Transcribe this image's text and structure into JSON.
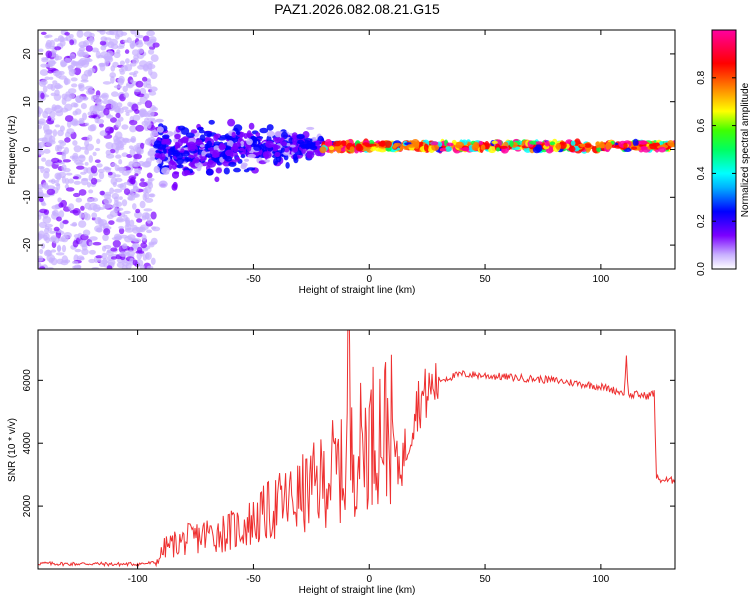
{
  "title": "PAZ1.2026.082.08.21.G15",
  "chart_data": [
    {
      "type": "heatmap",
      "title": "PAZ1.2026.082.08.21.G15",
      "xlabel": "Height of straight line (km)",
      "ylabel": "Frequency (Hz)",
      "xlim": [
        -143,
        132
      ],
      "ylim": [
        -25,
        25
      ],
      "xticks": [
        -100,
        -50,
        0,
        50,
        100
      ],
      "yticks": [
        -20,
        -10,
        0,
        10,
        20
      ],
      "colorbar": {
        "label": "Normalized spectral amplitude",
        "range": [
          0,
          1
        ],
        "ticks": [
          0.0,
          0.2,
          0.4,
          0.6,
          0.8
        ],
        "tick_labels": [
          "0.0",
          "0.2",
          "0.4",
          "0.6",
          "0.8"
        ],
        "colors": [
          "#ffffff",
          "#7b00ff",
          "#0000ff",
          "#00ffff",
          "#00ff00",
          "#ffff00",
          "#ff8000",
          "#ff0000",
          "#ff00a0"
        ]
      },
      "description_regions": [
        {
          "x_range": [
            -143,
            -92
          ],
          "freq_range": [
            -25,
            25
          ],
          "level": 0.05
        },
        {
          "x_range": [
            -92,
            -20
          ],
          "freq_range": [
            -8,
            8
          ],
          "level": 0.25
        },
        {
          "x_range": [
            -20,
            132
          ],
          "freq_range": [
            -1,
            2
          ],
          "level": 0.9
        }
      ]
    },
    {
      "type": "line",
      "xlabel": "Height of straight line (km)",
      "ylabel": "SNR (10 * v/v)",
      "xlim": [
        -143,
        132
      ],
      "ylim": [
        0,
        7600
      ],
      "xticks": [
        -100,
        -50,
        0,
        50,
        100
      ],
      "yticks": [
        2000,
        4000,
        6000
      ],
      "color": "#ee3030",
      "series": [
        {
          "name": "SNR",
          "x": [
            -143,
            -130,
            -120,
            -110,
            -100,
            -92,
            -88,
            -80,
            -70,
            -60,
            -50,
            -40,
            -30,
            -20,
            -15,
            -10,
            -9,
            -8,
            -5,
            0,
            5,
            10,
            12,
            15,
            20,
            25,
            30,
            35,
            40,
            50,
            60,
            70,
            80,
            90,
            100,
            105,
            110,
            111,
            112,
            115,
            120,
            123,
            124,
            125,
            130,
            132
          ],
          "y": [
            180,
            160,
            170,
            150,
            160,
            200,
            700,
            900,
            1100,
            1200,
            1500,
            2000,
            2300,
            2800,
            3200,
            3000,
            7600,
            3500,
            3800,
            4200,
            4600,
            4400,
            3200,
            3600,
            5200,
            5600,
            6000,
            6100,
            6200,
            6150,
            6100,
            6050,
            6000,
            5900,
            5800,
            5700,
            5600,
            6700,
            5500,
            5550,
            5500,
            5600,
            2900,
            2850,
            2800,
            2850
          ]
        }
      ]
    }
  ]
}
